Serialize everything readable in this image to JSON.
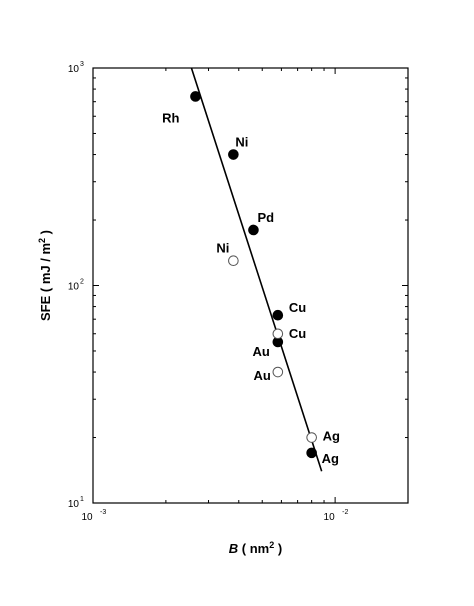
{
  "chart_data": {
    "type": "scatter",
    "x_scale": "log",
    "y_scale": "log",
    "xlim": [
      0.001,
      0.02
    ],
    "ylim": [
      10,
      1000
    ],
    "xlabel": {
      "italic": "B",
      "text": " ( nm",
      "sup": "2",
      "end": " )"
    },
    "ylabel": {
      "text": "SFE ( mJ / m",
      "sup": "2",
      "end": " )"
    },
    "x_ticks": [
      {
        "base": "10",
        "exp": "-3",
        "value": 0.001
      },
      {
        "base": "10",
        "exp": "-2",
        "value": 0.01
      }
    ],
    "y_ticks": [
      {
        "base": "10",
        "exp": "1",
        "value": 10
      },
      {
        "base": "10",
        "exp": "2",
        "value": 100
      },
      {
        "base": "10",
        "exp": "3",
        "value": 1000
      }
    ],
    "series": [
      {
        "marker": "filled-circle",
        "points": [
          {
            "label": "Rh",
            "x": 0.00265,
            "y": 740
          },
          {
            "label": "Ni",
            "x": 0.0038,
            "y": 400
          },
          {
            "label": "Pd",
            "x": 0.0046,
            "y": 180
          },
          {
            "label": "Cu",
            "x": 0.0058,
            "y": 73
          },
          {
            "label": "Au",
            "x": 0.0058,
            "y": 55
          },
          {
            "label": "Ag",
            "x": 0.008,
            "y": 17
          }
        ]
      },
      {
        "marker": "open-circle",
        "points": [
          {
            "label": "Ni",
            "x": 0.0038,
            "y": 130
          },
          {
            "label": "Cu",
            "x": 0.0058,
            "y": 60
          },
          {
            "label": "Au",
            "x": 0.0058,
            "y": 40
          },
          {
            "label": "Ag",
            "x": 0.008,
            "y": 20
          }
        ]
      }
    ],
    "fit_line": {
      "x": [
        0.00255,
        0.0088
      ],
      "y": [
        1000,
        14
      ]
    },
    "grid": false
  },
  "colors": {
    "axis": "#000000",
    "marker": "#000000",
    "open_marker_fill": "#ffffff",
    "open_marker_stroke": "#555555"
  }
}
